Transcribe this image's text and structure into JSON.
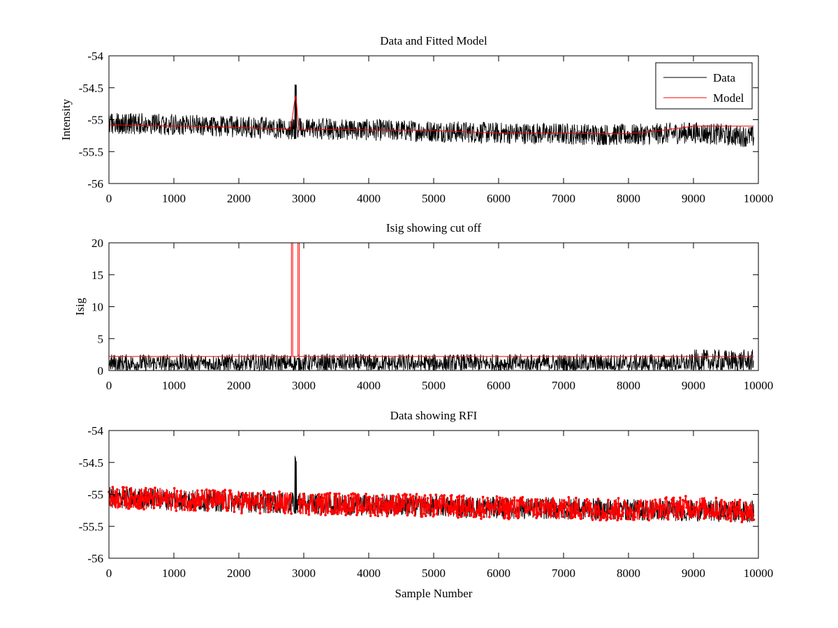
{
  "chart_data": [
    {
      "type": "line",
      "title": "Data and Fitted Model",
      "xlabel": "",
      "ylabel": "Intensity",
      "xlim": [
        0,
        10000
      ],
      "ylim": [
        -56,
        -54
      ],
      "xticks": [
        0,
        1000,
        2000,
        3000,
        4000,
        5000,
        6000,
        7000,
        8000,
        9000,
        10000
      ],
      "yticks": [
        -54,
        -54.5,
        -55,
        -55.5,
        -56
      ],
      "grid": false,
      "legend": {
        "placement": "top-right",
        "entries": [
          "Data",
          "Model"
        ]
      },
      "series": [
        {
          "name": "Data",
          "color": "#000000",
          "style": "noisy line",
          "x_range": [
            0,
            9930
          ],
          "noise_halfwidth": 0.17,
          "center": {
            "x": [
              0,
              2800,
              3000,
              4000,
              5000,
              6000,
              7000,
              8000,
              9000,
              9930
            ],
            "y": [
              -55.05,
              -55.14,
              -55.14,
              -55.16,
              -55.18,
              -55.21,
              -55.22,
              -55.24,
              -55.2,
              -55.27
            ]
          },
          "spike": {
            "x": 2870,
            "peak": -54.48,
            "min": -55.3
          }
        },
        {
          "name": "Model",
          "color": "#ff0000",
          "style": "line",
          "x": [
            0,
            1000,
            2000,
            2800,
            2860,
            2880,
            2920,
            3000,
            3500,
            4000,
            5000,
            5500,
            6000,
            7000,
            7500,
            8000,
            8500,
            9000,
            9930
          ],
          "y": [
            -55.08,
            -55.1,
            -55.12,
            -55.15,
            -54.7,
            -54.62,
            -55.15,
            -55.16,
            -55.15,
            -55.16,
            -55.17,
            -55.19,
            -55.21,
            -55.21,
            -55.22,
            -55.22,
            -55.17,
            -55.1,
            -55.1
          ]
        }
      ]
    },
    {
      "type": "line",
      "title": "Isig showing cut off",
      "xlabel": "",
      "ylabel": "Isig",
      "xlim": [
        0,
        10000
      ],
      "ylim": [
        0,
        20
      ],
      "xticks": [
        0,
        1000,
        2000,
        3000,
        4000,
        5000,
        6000,
        7000,
        8000,
        9000,
        10000
      ],
      "yticks": [
        0,
        5,
        10,
        15,
        20
      ],
      "grid": false,
      "series": [
        {
          "color": "#000000",
          "style": "noisy line",
          "x_range": [
            0,
            9930
          ],
          "noise_max": 2.6,
          "noise_max_after_9000": 3.3
        },
        {
          "color": "#ff0000",
          "style": "cut off line",
          "level": 2.2,
          "x_range": [
            0,
            9930
          ],
          "spikes": [
            {
              "x_start": 2810,
              "x_end": 2830,
              "peak": 20
            },
            {
              "x_start": 2910,
              "x_end": 2930,
              "peak": 20
            }
          ]
        }
      ]
    },
    {
      "type": "line",
      "title": "Data showing RFI",
      "xlabel": "Sample Number",
      "ylabel": "",
      "xlim": [
        0,
        10000
      ],
      "ylim": [
        -56,
        -54
      ],
      "xticks": [
        0,
        1000,
        2000,
        3000,
        4000,
        5000,
        6000,
        7000,
        8000,
        9000,
        10000
      ],
      "yticks": [
        -54,
        -54.5,
        -55,
        -55.5,
        -56
      ],
      "grid": false,
      "series": [
        {
          "color": "#000000",
          "style": "noisy line",
          "x_range": [
            0,
            9930
          ],
          "spike": {
            "x": 2870,
            "peak": -54.48,
            "min": -55.3
          }
        },
        {
          "color": "#ff0000",
          "style": "line with dot markers",
          "x_range": [
            0,
            9930
          ],
          "gap": [
            2820,
            2920
          ],
          "noise_halfwidth": 0.18,
          "center": {
            "x": [
              0,
              2800,
              3000,
              4000,
              5000,
              6000,
              7000,
              8000,
              9000,
              9930
            ],
            "y": [
              -55.05,
              -55.14,
              -55.14,
              -55.16,
              -55.18,
              -55.21,
              -55.22,
              -55.24,
              -55.2,
              -55.27
            ]
          }
        }
      ]
    }
  ]
}
